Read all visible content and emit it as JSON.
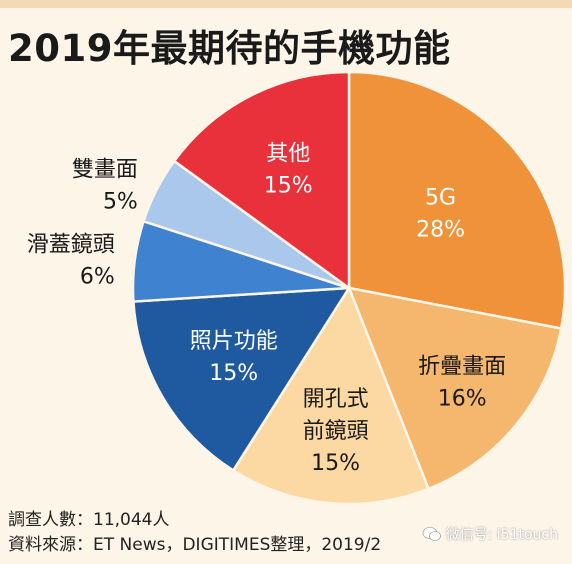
{
  "title": "2019年最期待的手機功能",
  "chart_data": {
    "type": "pie",
    "title": "2019年最期待的手機功能",
    "slices": [
      {
        "label": "5G",
        "value": 28,
        "value_label": "28%",
        "color": "#f0923a",
        "text_color": "#ffffff"
      },
      {
        "label": "折疊畫面",
        "value": 16,
        "value_label": "16%",
        "color": "#f5b66e",
        "text_color": "#1a1a1a"
      },
      {
        "label": "開孔式前鏡頭",
        "value": 15,
        "value_label": "15%",
        "color": "#fcd9a3",
        "text_color": "#1a1a1a"
      },
      {
        "label": "照片功能",
        "value": 15,
        "value_label": "15%",
        "color": "#1f5aa0",
        "text_color": "#ffffff"
      },
      {
        "label": "滑蓋鏡頭",
        "value": 6,
        "value_label": "6%",
        "color": "#3f82cf",
        "text_color": "#1a1a1a"
      },
      {
        "label": "雙畫面",
        "value": 5,
        "value_label": "5%",
        "color": "#a9c8ec",
        "text_color": "#1a1a1a"
      },
      {
        "label": "其他",
        "value": 15,
        "value_label": "15%",
        "color": "#e8313b",
        "text_color": "#ffffff"
      }
    ]
  },
  "footer": {
    "sample": "調查人數：11,044人",
    "source": "資料來源：ET News，DIGITIMES整理，2019/2"
  },
  "watermark": "微信号: i51touch"
}
